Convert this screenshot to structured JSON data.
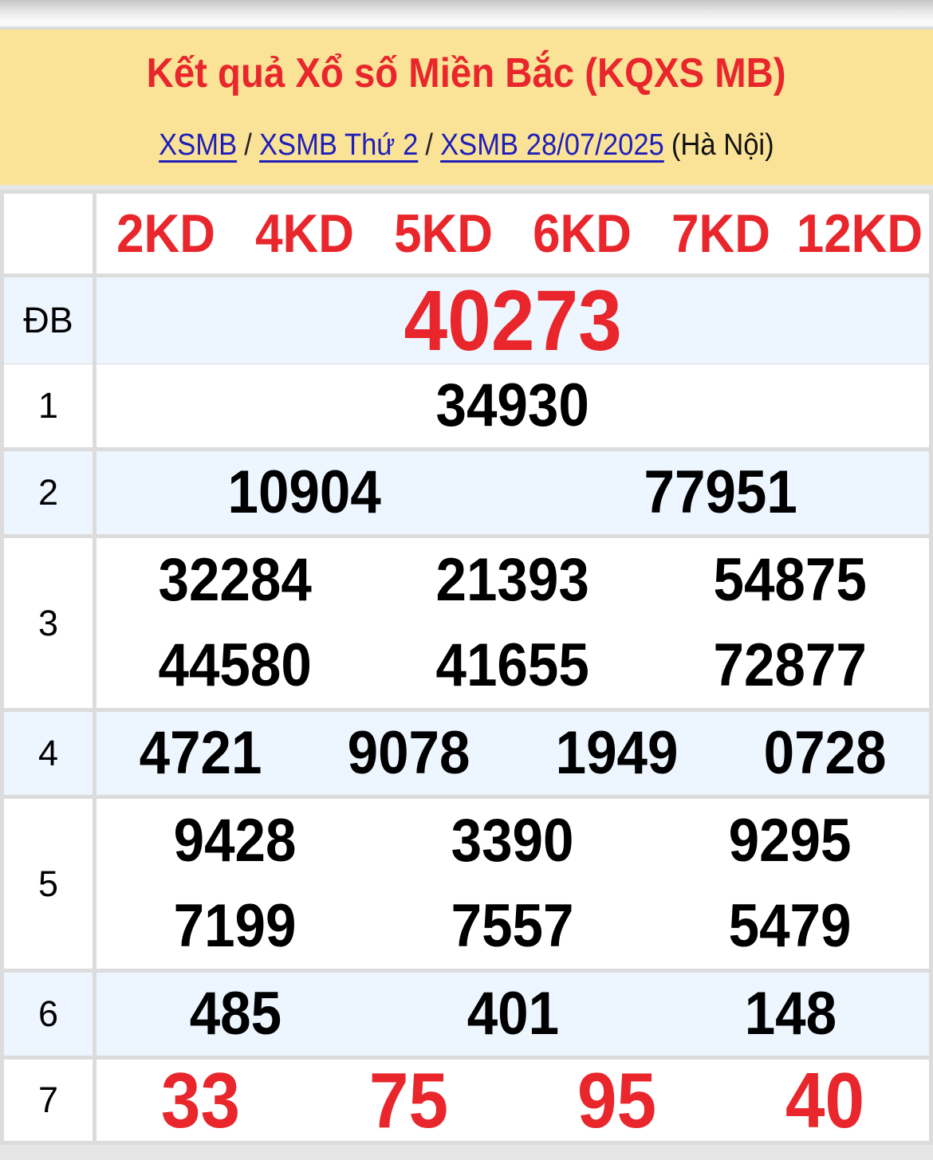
{
  "header": {
    "title": "Kết quả Xổ số Miền Bắc (KQXS MB)",
    "breadcrumb": [
      {
        "label": "XSMB"
      },
      {
        "label": "XSMB Thứ 2"
      },
      {
        "label": "XSMB 28/07/2025"
      }
    ],
    "separator": "/",
    "location": "(Hà Nội)"
  },
  "kd_tabs": [
    "2KD",
    "4KD",
    "5KD",
    "6KD",
    "7KD",
    "12KD"
  ],
  "prizes": [
    {
      "id": "db",
      "label": "ĐB",
      "special": true,
      "lines": [
        [
          "40273"
        ]
      ]
    },
    {
      "id": "1",
      "label": "1",
      "lines": [
        [
          "34930"
        ]
      ]
    },
    {
      "id": "2",
      "label": "2",
      "lines": [
        [
          "10904",
          "77951"
        ]
      ]
    },
    {
      "id": "3",
      "label": "3",
      "lines": [
        [
          "32284",
          "21393",
          "54875"
        ],
        [
          "44580",
          "41655",
          "72877"
        ]
      ]
    },
    {
      "id": "4",
      "label": "4",
      "lines": [
        [
          "4721",
          "9078",
          "1949",
          "0728"
        ]
      ]
    },
    {
      "id": "5",
      "label": "5",
      "lines": [
        [
          "9428",
          "3390",
          "9295"
        ],
        [
          "7199",
          "7557",
          "5479"
        ]
      ]
    },
    {
      "id": "6",
      "label": "6",
      "lines": [
        [
          "485",
          "401",
          "148"
        ]
      ]
    },
    {
      "id": "7",
      "label": "7",
      "red": true,
      "lines": [
        [
          "33",
          "75",
          "95",
          "40"
        ]
      ]
    }
  ],
  "colors": {
    "accent_red": "#e8262b",
    "link_blue": "#1f1fb8",
    "banner_yellow": "#fae397",
    "row_alt_blue": "#edf5fe",
    "border_gray": "#dcdcdc"
  }
}
